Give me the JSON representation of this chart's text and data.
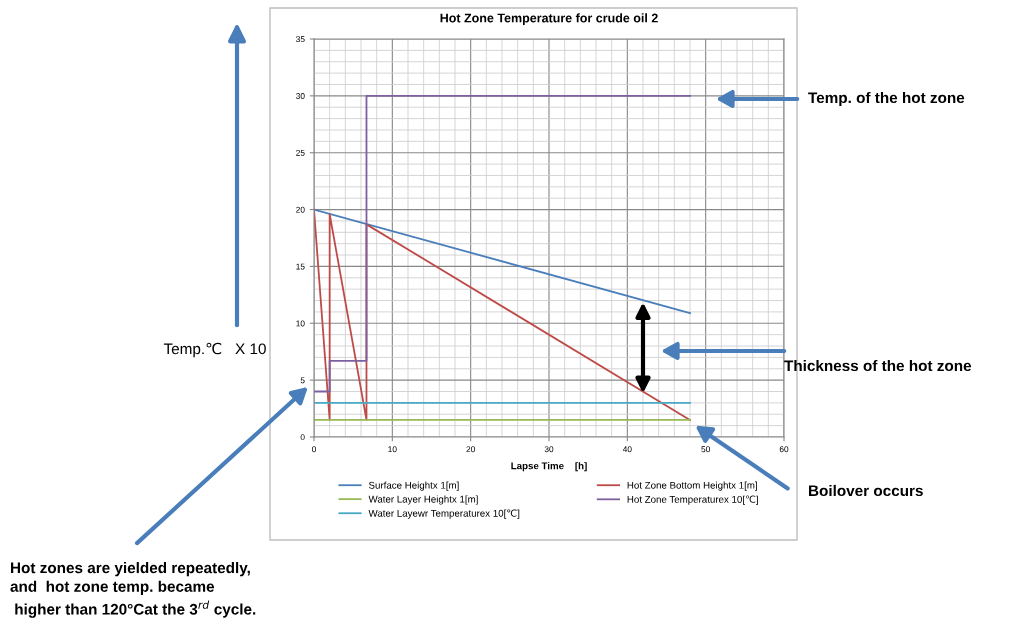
{
  "chart_data": {
    "type": "line",
    "title": "Hot Zone Temperature for crude oil 2",
    "xlabel": "Lapse Time    [h]",
    "ylabel": "Temp.℃   X 10",
    "xlim": [
      0,
      60
    ],
    "xticks": [
      0,
      10,
      20,
      30,
      40,
      50,
      60
    ],
    "ylim": [
      0,
      35
    ],
    "yticks": [
      0,
      5,
      10,
      15,
      20,
      25,
      30,
      35
    ],
    "grid": true,
    "legend": "bottom",
    "marker": "none",
    "line_style": "solid",
    "series": [
      {
        "name": "Surface Heightx 1[m]",
        "color": "#4a7ebb",
        "x": [
          0,
          48
        ],
        "values": [
          20,
          10.9
        ]
      },
      {
        "name": "Hot Zone Bottom Heightx 1[m]",
        "color": "#be4b48",
        "x": [
          0,
          2,
          2,
          6.7,
          6.7,
          48
        ],
        "values": [
          20,
          1.5,
          19.6,
          1.5,
          18.7,
          1.5
        ]
      },
      {
        "name": "Water Layer Heightx 1[m]",
        "color": "#98b954",
        "x": [
          0,
          48
        ],
        "values": [
          1.5,
          1.5
        ]
      },
      {
        "name": "Hot Zone Temperaturex 10[℃]",
        "color": "#7d60a0",
        "x": [
          0,
          2,
          2,
          6.7,
          6.7,
          48
        ],
        "values": [
          4,
          4,
          6.7,
          6.7,
          30,
          30
        ]
      },
      {
        "name": "Water Layewr Temperaturex 10[℃]",
        "color": "#46aac5",
        "x": [
          0,
          48
        ],
        "values": [
          3,
          3
        ]
      }
    ],
    "annotations": [
      "Temp. of the hot zone",
      "Thickness of the hot zone",
      "Boilover occurs",
      "Hot zones are yielded repeatedly,\nand  hot zone temp. became\n higher than 120°Cat the 3$^{rd}$ cycle."
    ]
  }
}
